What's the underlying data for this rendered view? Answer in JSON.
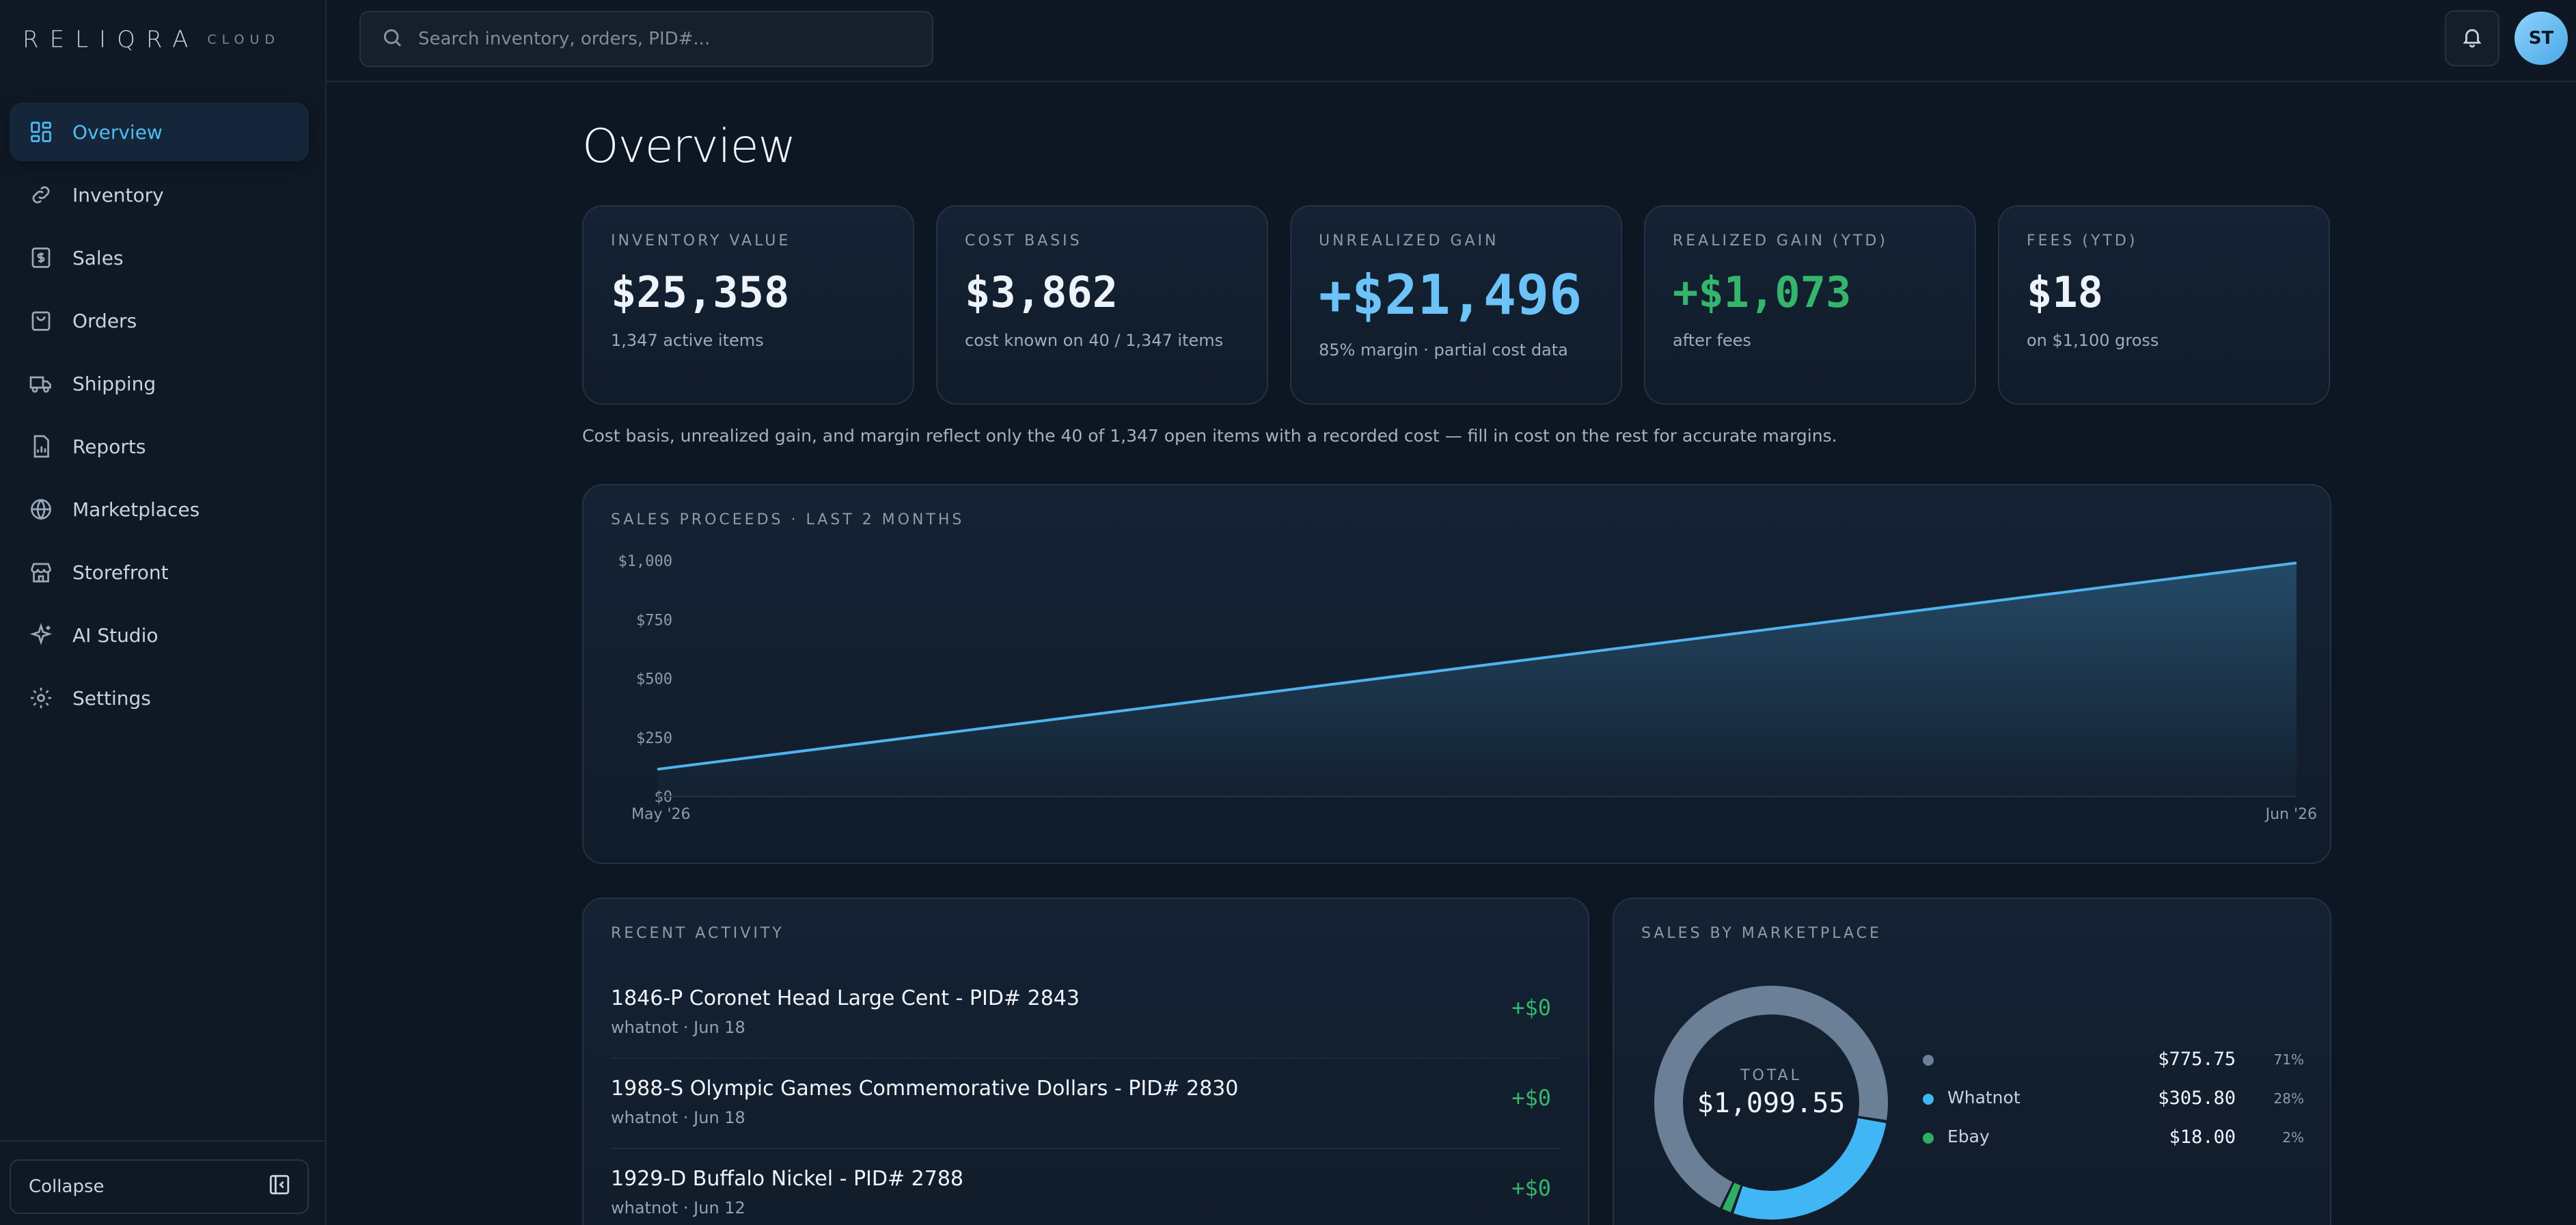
{
  "brand": {
    "name": "RELIQRA",
    "tag": "CLOUD"
  },
  "sidebar": {
    "items": [
      {
        "label": "Overview",
        "icon": "grid-icon",
        "active": true
      },
      {
        "label": "Inventory",
        "icon": "link-icon"
      },
      {
        "label": "Sales",
        "icon": "dollar-doc-icon"
      },
      {
        "label": "Orders",
        "icon": "bag-icon"
      },
      {
        "label": "Shipping",
        "icon": "truck-icon"
      },
      {
        "label": "Reports",
        "icon": "report-icon"
      },
      {
        "label": "Marketplaces",
        "icon": "globe-icon"
      },
      {
        "label": "Storefront",
        "icon": "store-icon"
      },
      {
        "label": "AI Studio",
        "icon": "sparkle-icon"
      },
      {
        "label": "Settings",
        "icon": "gear-icon"
      }
    ],
    "collapse_label": "Collapse"
  },
  "search": {
    "placeholder": "Search inventory, orders, PID#..."
  },
  "user": {
    "initials": "ST"
  },
  "page": {
    "title": "Overview"
  },
  "kpis": [
    {
      "label": "INVENTORY VALUE",
      "value": "$25,358",
      "sub": "1,347 active items"
    },
    {
      "label": "COST BASIS",
      "value": "$3,862",
      "sub": "cost known on 40 / 1,347 items"
    },
    {
      "label": "UNREALIZED GAIN",
      "value": "+$21,496",
      "sub": "85% margin · partial cost data"
    },
    {
      "label": "REALIZED GAIN (YTD)",
      "value": "+$1,073",
      "sub": "after fees"
    },
    {
      "label": "FEES (YTD)",
      "value": "$18",
      "sub": "on $1,100 gross"
    }
  ],
  "cost_note": "Cost basis, unrealized gain, and margin reflect only the 40 of 1,347 open items with a recorded cost — fill in cost on the rest for accurate margins.",
  "sales_chart": {
    "label": "SALES PROCEEDS · LAST 2 MONTHS",
    "y_ticks": [
      "$1,000",
      "$750",
      "$500",
      "$250",
      "$0"
    ],
    "x_ticks": [
      "May '26",
      "Jun '26"
    ]
  },
  "chart_data": {
    "type": "area",
    "title": "SALES PROCEEDS · LAST 2 MONTHS",
    "x": [
      "May '26",
      "Jun '26"
    ],
    "series": [
      {
        "values": [
          115,
          990
        ]
      }
    ],
    "ylim": [
      0,
      1000
    ],
    "y_ticks": [
      0,
      250,
      500,
      750,
      1000
    ],
    "color": "#4fb4ee"
  },
  "activity": {
    "label": "RECENT ACTIVITY",
    "rows": [
      {
        "title": "1846-P Coronet Head Large Cent - PID# 2843",
        "meta": "whatnot · Jun 18",
        "amount": "+$0"
      },
      {
        "title": "1988-S Olympic Games Commemorative Dollars - PID# 2830",
        "meta": "whatnot · Jun 18",
        "amount": "+$0"
      },
      {
        "title": "1929-D Buffalo Nickel - PID# 2788",
        "meta": "whatnot · Jun 12",
        "amount": "+$0"
      }
    ]
  },
  "marketplace": {
    "label": "SALES BY MARKETPLACE",
    "total_label": "TOTAL",
    "total_value": "$1,099.55",
    "segments": [
      {
        "name": "",
        "value": "$775.75",
        "pct": "71%",
        "share": 0.7055,
        "color": "#6b7f96"
      },
      {
        "name": "Whatnot",
        "value": "$305.80",
        "pct": "28%",
        "share": 0.2781,
        "color": "#41b6f5"
      },
      {
        "name": "Ebay",
        "value": "$18.00",
        "pct": "2%",
        "share": 0.0164,
        "color": "#2fae63"
      }
    ]
  }
}
